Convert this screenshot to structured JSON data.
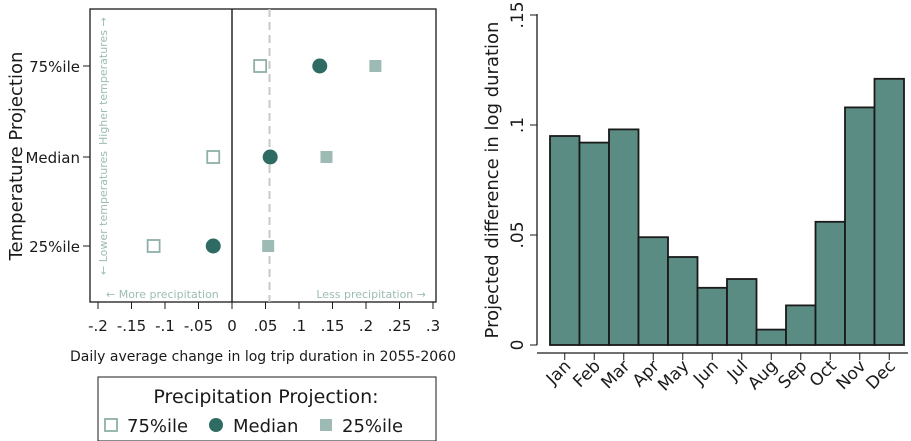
{
  "colors": {
    "dark_teal": "#2e6b63",
    "light_teal": "#9ebab4",
    "hollow_teal": "#8fb0a9",
    "bar_fill": "#5b8c83",
    "note_text": "#9dbcb4",
    "dashed_line": "#c9c9c9"
  },
  "chart_data": [
    {
      "type": "scatter",
      "xlabel": "Daily average change in log trip duration in 2055-2060",
      "ylabel": "Temperature Projection",
      "xlim": [
        -0.2,
        0.3
      ],
      "x_ticks": [
        "-.2",
        "-.15",
        "-.1",
        "-.05",
        "0",
        ".05",
        ".1",
        ".15",
        ".2",
        ".25",
        ".3"
      ],
      "x_tick_values": [
        -0.2,
        -0.15,
        -0.1,
        -0.05,
        0,
        0.05,
        0.1,
        0.15,
        0.2,
        0.25,
        0.3
      ],
      "categories": [
        "75%ile",
        "Median",
        "25%ile"
      ],
      "reference_line_x": 0.056,
      "series": [
        {
          "name": "75%ile",
          "marker": "hollow-square",
          "values": [
            0.042,
            -0.028,
            -0.117
          ]
        },
        {
          "name": "Median",
          "marker": "filled-circle",
          "values": [
            0.131,
            0.057,
            -0.028
          ]
        },
        {
          "name": "25%ile",
          "marker": "filled-square",
          "values": [
            0.214,
            0.141,
            0.054
          ]
        }
      ],
      "annotations": {
        "higher_temperatures": "Higher temperatures →",
        "lower_temperatures": "← Lower temperatures",
        "more_precipitation": "← More precipitation",
        "less_precipitation": "Less precipitation →"
      },
      "legend": {
        "title": "Precipitation Projection:",
        "placement": "bottom",
        "items": [
          "75%ile",
          "Median",
          "25%ile"
        ]
      }
    },
    {
      "type": "bar",
      "ylabel": "Projected difference in log duration",
      "xlabel": "",
      "ylim": [
        0,
        0.155
      ],
      "y_ticks": [
        "0",
        ".05",
        ".1",
        ".15"
      ],
      "y_tick_values": [
        0,
        0.05,
        0.1,
        0.15
      ],
      "categories": [
        "Jan",
        "Feb",
        "Mar",
        "Apr",
        "May",
        "Jun",
        "Jul",
        "Aug",
        "Sep",
        "Oct",
        "Nov",
        "Dec"
      ],
      "values": [
        0.095,
        0.092,
        0.098,
        0.049,
        0.04,
        0.026,
        0.03,
        0.007,
        0.018,
        0.056,
        0.108,
        0.121
      ]
    }
  ]
}
